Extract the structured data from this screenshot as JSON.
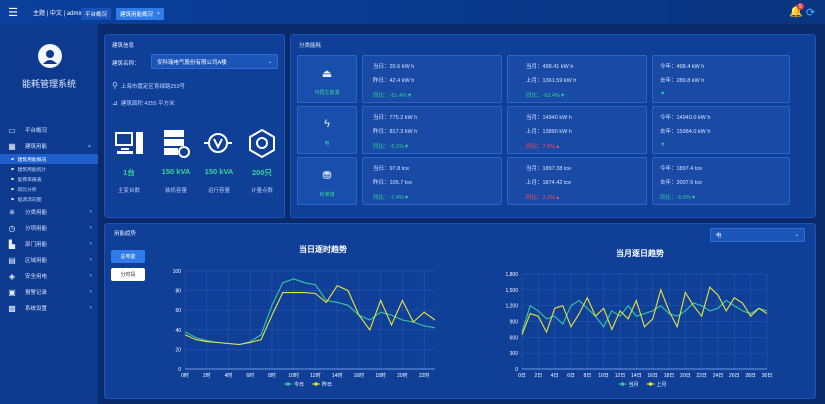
{
  "topbar": {
    "menu": "主题 | 中文 | admin ▾",
    "tabs": [
      "平台概况",
      "建筑用能概况"
    ],
    "tab_close": "×",
    "badge": "5"
  },
  "sidebar": {
    "system_name": "能耗管理系统",
    "items": [
      {
        "label": "平台概况"
      },
      {
        "label": "建筑用能"
      },
      {
        "label": "分类用能"
      },
      {
        "label": "分项用能"
      },
      {
        "label": "部门用能"
      },
      {
        "label": "区域用能"
      },
      {
        "label": "安全用电"
      },
      {
        "label": "报警记录"
      },
      {
        "label": "系统设置"
      }
    ],
    "sub_items": [
      {
        "label": "建筑用能概况"
      },
      {
        "label": "建筑用能统计"
      },
      {
        "label": "复费率报表"
      },
      {
        "label": "同比分析"
      },
      {
        "label": "能源流向图"
      }
    ]
  },
  "building": {
    "panel_title": "建筑信息",
    "name_label": "建筑名称：",
    "name_value": "安科瑞电气股份有限公司A楼",
    "address": "上海市嘉定区育绿路253号",
    "area": "建筑面积 4255 平方米",
    "stats": [
      {
        "value": "1台",
        "label": "主变台数"
      },
      {
        "value": "150 kVA",
        "label": "装机容量"
      },
      {
        "value": "150 kVA",
        "label": "运行容量"
      },
      {
        "value": "200只",
        "label": "计量点数"
      }
    ]
  },
  "categories": {
    "panel_title": "分类能耗",
    "rows": [
      {
        "name": "可再生能源",
        "today": "当日：20.6 kW h",
        "yday": "昨日：42.4 kW h",
        "dod": "同比：-51.4%▼",
        "month": "当月：498.41 kW h",
        "lmonth": "上月：1361.59 kW h",
        "mom": "同比：-63.4%▼",
        "year": "今年：498.4 kW h",
        "lyear": "去年：289.8 kW h",
        "yoy": "▼"
      },
      {
        "name": "电",
        "today": "当日：775.2 kW h",
        "yday": "昨日：817.3 kW h",
        "dod": "同比：-5.1%▼",
        "month": "当月：14940 kW h",
        "lmonth": "上月：13890 kW h",
        "mom": "同比：7.6%▲",
        "year": "今年：14940.0 kW h",
        "lyear": "去年：15984.0 kW h",
        "yoy": "▼"
      },
      {
        "name": "标准煤",
        "today": "当日：97.8 tce",
        "yday": "昨日：105.7 tce",
        "dod": "同比：-7.4%▼",
        "month": "当月：1897.38 tce",
        "lmonth": "上月：1874.42 tce",
        "mom": "同比：1.2%▲",
        "year": "今年：1897.4 tce",
        "lyear": "去年：2007.6 tce",
        "yoy": "同比：-5.5%▼"
      }
    ]
  },
  "trend": {
    "panel_title": "用能趋势",
    "buttons": [
      "总电能",
      "分时段"
    ],
    "select": "电",
    "charts": [
      {
        "title": "当日逐时趋势",
        "legend": [
          "今日",
          "昨日"
        ]
      },
      {
        "title": "当月逐日趋势",
        "legend": [
          "当月",
          "上月"
        ]
      }
    ]
  },
  "chart_data": [
    {
      "type": "line",
      "title": "当日逐时趋势",
      "x": [
        "0时",
        "1时",
        "2时",
        "3时",
        "4时",
        "5时",
        "6时",
        "7时",
        "8时",
        "9时",
        "10时",
        "11时",
        "12时",
        "13时",
        "14时",
        "15时",
        "16时",
        "17时",
        "18时",
        "19时",
        "20时",
        "21时",
        "22时",
        "23时"
      ],
      "xticks": [
        "0时",
        "2时",
        "4时",
        "6时",
        "8时",
        "10时",
        "12时",
        "14时",
        "16时",
        "18时",
        "20时",
        "22时"
      ],
      "ylim": [
        0,
        100
      ],
      "yticks": [
        0,
        20,
        40,
        60,
        80,
        100
      ],
      "grid": true,
      "legend": "bottom",
      "series": [
        {
          "name": "今日",
          "color": "#3cc7a4",
          "values": [
            38,
            32,
            29,
            27,
            26,
            25,
            28,
            35,
            65,
            88,
            92,
            88,
            86,
            70,
            68,
            65,
            55,
            50,
            58,
            55,
            50,
            48,
            44,
            42
          ]
        },
        {
          "name": "昨日",
          "color": "#e6e43a",
          "values": [
            35,
            30,
            28,
            27,
            26,
            25,
            27,
            30,
            55,
            78,
            78,
            78,
            77,
            68,
            85,
            80,
            55,
            40,
            70,
            45,
            70,
            48,
            58,
            50
          ]
        }
      ]
    },
    {
      "type": "line",
      "title": "当月逐日趋势",
      "x": [
        "0日",
        "1日",
        "2日",
        "3日",
        "4日",
        "5日",
        "6日",
        "7日",
        "8日",
        "9日",
        "10日",
        "11日",
        "12日",
        "13日",
        "14日",
        "15日",
        "16日",
        "17日",
        "18日",
        "19日",
        "20日",
        "21日",
        "22日",
        "23日",
        "24日",
        "25日",
        "26日",
        "27日",
        "28日",
        "29日",
        "30日"
      ],
      "xticks": [
        "0日",
        "2日",
        "4日",
        "6日",
        "8日",
        "10日",
        "12日",
        "14日",
        "16日",
        "18日",
        "20日",
        "22日",
        "24日",
        "26日",
        "28日",
        "30日"
      ],
      "ylim": [
        0,
        1800
      ],
      "yticks": [
        0,
        300,
        600,
        900,
        1200,
        1500,
        1800
      ],
      "grid": true,
      "legend": "bottom",
      "series": [
        {
          "name": "当月",
          "color": "#3cc7a4",
          "values": [
            700,
            1200,
            1100,
            950,
            1000,
            850,
            1200,
            1300,
            1150,
            1000,
            800,
            1100,
            1000,
            1200,
            1000,
            1050,
            1100,
            1200,
            1050,
            1000,
            1100,
            1250,
            1200,
            1100,
            1150,
            1300,
            1200,
            1100,
            1050,
            1150,
            1100
          ]
        },
        {
          "name": "上月",
          "color": "#e6e43a",
          "values": [
            650,
            1050,
            1000,
            700,
            1150,
            1200,
            800,
            1050,
            1350,
            1000,
            1150,
            750,
            1100,
            950,
            1300,
            800,
            950,
            1500,
            1100,
            800,
            1450,
            1200,
            1000,
            1550,
            1400,
            1100,
            1350,
            1250,
            1000,
            1150,
            1050
          ]
        }
      ]
    }
  ]
}
